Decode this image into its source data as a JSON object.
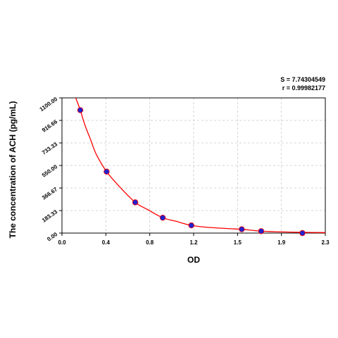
{
  "chart_data": {
    "type": "scatter",
    "title": "",
    "xlabel": "OD",
    "ylabel": "The concentration of ACH (pg/mL)",
    "xlim": [
      0.0,
      2.3
    ],
    "ylim": [
      0.0,
      1100.0
    ],
    "x_ticks": [
      "0.0",
      "0.4",
      "0.8",
      "1.2",
      "1.5",
      "1.9",
      "2.3"
    ],
    "y_ticks": [
      "0.00",
      "183.33",
      "366.67",
      "550.00",
      "733.33",
      "916.66",
      "1100.00"
    ],
    "grid": true,
    "points": {
      "x": [
        0.16,
        0.39,
        0.64,
        0.88,
        1.13,
        1.57,
        1.74,
        2.1
      ],
      "y": [
        1000,
        500,
        250,
        125,
        62.5,
        31.25,
        15.6,
        0
      ]
    },
    "fit_curve": {
      "x": [
        0.12,
        0.16,
        0.2,
        0.25,
        0.3,
        0.39,
        0.5,
        0.64,
        0.75,
        0.88,
        1.0,
        1.13,
        1.3,
        1.5,
        1.57,
        1.74,
        1.9,
        2.1,
        2.3
      ],
      "y": [
        1100,
        1000,
        880,
        760,
        640,
        500,
        380,
        250,
        190,
        125,
        95,
        62.5,
        45,
        34,
        31.25,
        15.6,
        10,
        6,
        4
      ]
    },
    "stats": {
      "s": "S = 7.74304549",
      "r": "r = 0.99982177"
    },
    "colors": {
      "curve": "#ff0000",
      "point": "#2222cc",
      "grid": "#c8c8c8",
      "axis": "#000000"
    }
  }
}
